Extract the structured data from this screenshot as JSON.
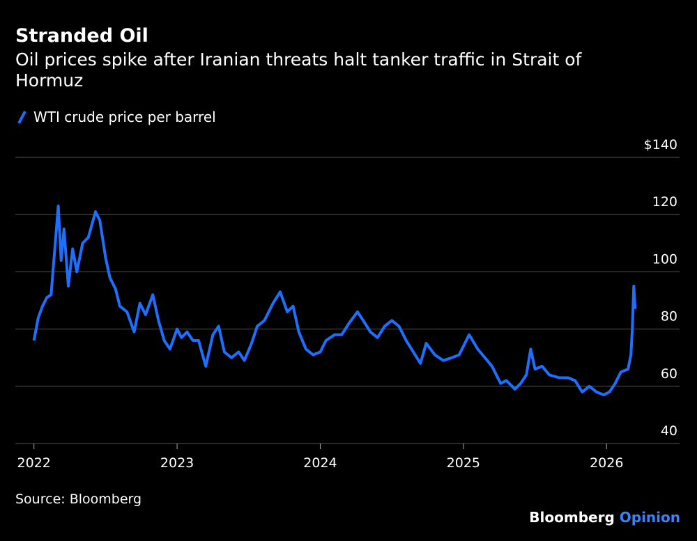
{
  "chart_data": {
    "type": "line",
    "title": "Stranded Oil",
    "subtitle": "Oil prices spike after Iranian threats halt tanker traffic in Strait of Hormuz",
    "source": "Source: Bloomberg",
    "credit": "Bloomberg",
    "credit_suffix": "Opinion",
    "grid": true,
    "legend": "top-left",
    "xlim": [
      2021.87,
      2026.51
    ],
    "xticks": [
      2022,
      2023,
      2024,
      2025,
      2026
    ],
    "ylim": [
      40,
      140
    ],
    "yticks": [
      40,
      60,
      80,
      100,
      120,
      {
        "value": 140,
        "label": "$140"
      }
    ],
    "x": [
      2022.0,
      2022.03,
      2022.06,
      2022.09,
      2022.12,
      2022.17,
      2022.19,
      2022.21,
      2022.24,
      2022.27,
      2022.3,
      2022.34,
      2022.38,
      2022.43,
      2022.46,
      2022.5,
      2022.53,
      2022.57,
      2022.6,
      2022.65,
      2022.7,
      2022.74,
      2022.78,
      2022.83,
      2022.87,
      2022.91,
      2022.95,
      2023.0,
      2023.03,
      2023.07,
      2023.11,
      2023.15,
      2023.2,
      2023.25,
      2023.29,
      2023.33,
      2023.38,
      2023.43,
      2023.47,
      2023.52,
      2023.56,
      2023.61,
      2023.67,
      2023.72,
      2023.77,
      2023.81,
      2023.85,
      2023.9,
      2023.95,
      2024.0,
      2024.04,
      2024.1,
      2024.15,
      2024.2,
      2024.26,
      2024.3,
      2024.35,
      2024.4,
      2024.45,
      2024.5,
      2024.55,
      2024.6,
      2024.65,
      2024.7,
      2024.74,
      2024.8,
      2024.86,
      2024.92,
      2024.97,
      2025.04,
      2025.1,
      2025.15,
      2025.2,
      2025.26,
      2025.3,
      2025.36,
      2025.4,
      2025.44,
      2025.47,
      2025.5,
      2025.55,
      2025.6,
      2025.67,
      2025.73,
      2025.78,
      2025.83,
      2025.88,
      2025.93,
      2025.98,
      2026.02,
      2026.06,
      2026.1,
      2026.15,
      2026.17,
      2026.18,
      2026.19,
      2026.2
    ],
    "series": [
      {
        "name": "WTI crude price per barrel",
        "color": "#1f6fff",
        "values": [
          76,
          84,
          88,
          91,
          92,
          123,
          104,
          115,
          95,
          108,
          100,
          110,
          112,
          121,
          118,
          105,
          98,
          94,
          88,
          86,
          79,
          89,
          85,
          92,
          83,
          76,
          73,
          80,
          77,
          79,
          76,
          76,
          67,
          78,
          81,
          72,
          70,
          72,
          69,
          75,
          81,
          83,
          89,
          93,
          86,
          88,
          79,
          73,
          71,
          72,
          76,
          78,
          78,
          82,
          86,
          83,
          79,
          77,
          81,
          83,
          81,
          76,
          72,
          68,
          75,
          71,
          69,
          70,
          71,
          78,
          73,
          70,
          67,
          61,
          62,
          59,
          61,
          64,
          73,
          66,
          67,
          64,
          63,
          63,
          62,
          58,
          60,
          58,
          57,
          58,
          61,
          65,
          66,
          71,
          80,
          95,
          87
        ]
      }
    ]
  }
}
